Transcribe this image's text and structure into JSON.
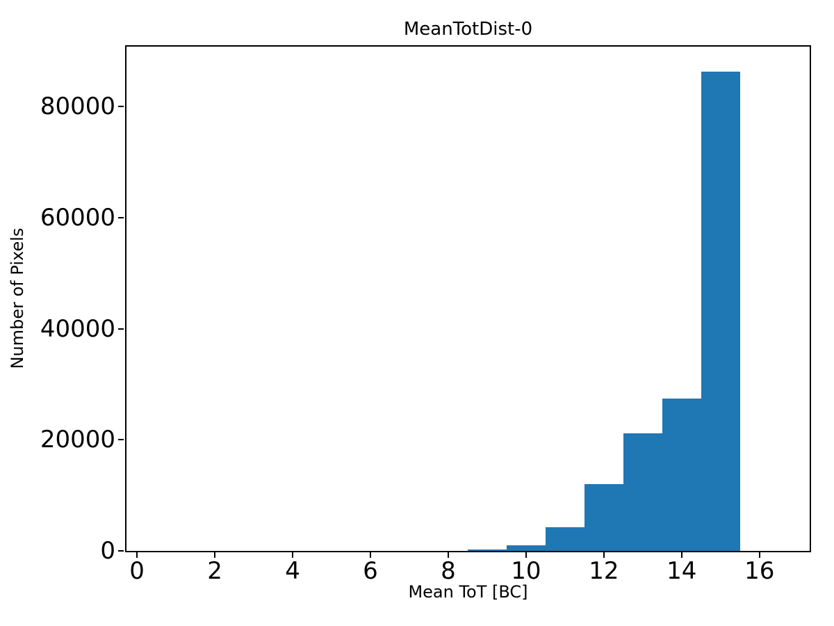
{
  "figure": {
    "title": "MeanTotDist-0",
    "xlabel": "Mean ToT [BC]",
    "ylabel": "Number of Pixels"
  },
  "chart_data": {
    "type": "bar",
    "subtype": "histogram",
    "title": "MeanTotDist-0",
    "xlabel": "Mean ToT [BC]",
    "ylabel": "Number of Pixels",
    "bar_color": "#1f77b4",
    "bin_edges": [
      8.5,
      9.5,
      10.5,
      11.5,
      12.5,
      13.5,
      14.5,
      15.5
    ],
    "counts": [
      250,
      1050,
      4300,
      12000,
      21200,
      27400,
      86300
    ],
    "bin_centers": [
      9,
      10,
      11,
      12,
      13,
      14,
      15
    ],
    "x_ticks": [
      0,
      2,
      4,
      6,
      8,
      10,
      12,
      14,
      16
    ],
    "y_ticks": [
      0,
      20000,
      40000,
      60000,
      80000
    ],
    "xlim": [
      -0.27,
      17.29
    ],
    "ylim": [
      0,
      90800
    ],
    "grid": false,
    "legend_position": "none"
  }
}
